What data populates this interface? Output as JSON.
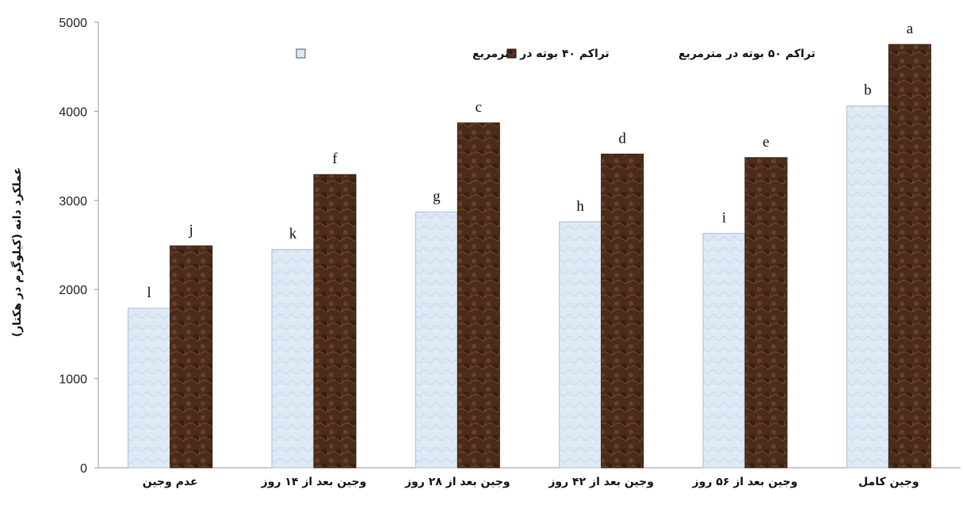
{
  "chart_data": {
    "type": "bar",
    "ylabel": "عملکرد دانه (کیلوگرم در هکتار)",
    "ylim": [
      0,
      5000
    ],
    "yticks": [
      0,
      1000,
      2000,
      3000,
      4000,
      5000
    ],
    "grid": false,
    "legend_position": "top-center",
    "categories": [
      "عدم وجین",
      "وجین بعد از ۱۴ روز",
      "وجین بعد از ۲۸ روز",
      "وجین بعد از ۴۲ روز",
      "وجین  بعد از ۵۶ روز",
      "وجین کامل"
    ],
    "series": [
      {
        "name": "تراکم ۴۰ بوته در مترمربع",
        "color": "#dce9f5",
        "values": [
          1790,
          2450,
          2870,
          2760,
          2630,
          4060
        ],
        "labels": [
          "l",
          "k",
          "g",
          "h",
          "i",
          "b"
        ]
      },
      {
        "name": "تراکم ۵۰ بوته در مترمربع",
        "color": "#4a2a18",
        "values": [
          2490,
          3290,
          3870,
          3520,
          3480,
          4750
        ],
        "labels": [
          "j",
          "f",
          "c",
          "d",
          "e",
          "a"
        ]
      }
    ]
  }
}
